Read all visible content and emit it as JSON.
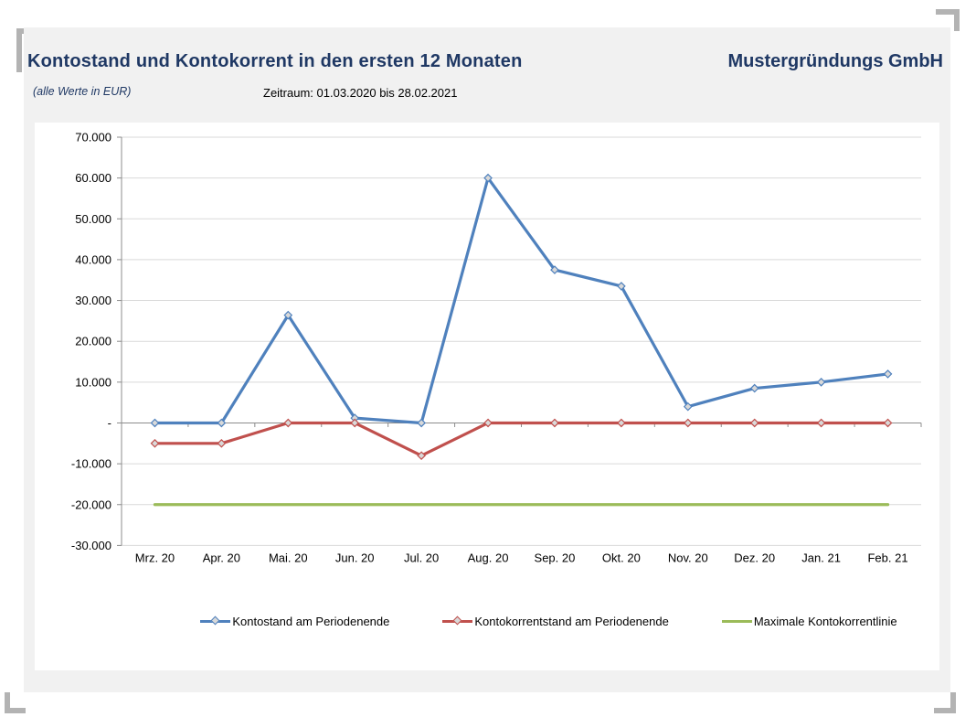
{
  "header": {
    "title": "Kontostand und Kontokorrent in den ersten 12 Monaten",
    "company": "Mustergründungs GmbH",
    "units_note": "(alle Werte in EUR)",
    "period": "Zeitraum: 01.03.2020 bis 28.02.2021"
  },
  "colors": {
    "title_text": "#1f3864",
    "panel_bg": "#f1f1f1",
    "chart_bg": "#ffffff",
    "gridline": "#d9d9d9",
    "axis_line": "#8c8c8c",
    "marker_fill": "#d9d9d9",
    "crop_mark": "#b3b3b3"
  },
  "chart_data": {
    "type": "line",
    "title": "Kontostand und Kontokorrent in den ersten 12 Monaten",
    "xlabel": "",
    "ylabel": "",
    "categories": [
      "Mrz. 20",
      "Apr. 20",
      "Mai. 20",
      "Jun. 20",
      "Jul. 20",
      "Aug. 20",
      "Sep. 20",
      "Okt. 20",
      "Nov. 20",
      "Dez. 20",
      "Jan. 21",
      "Feb. 21"
    ],
    "series": [
      {
        "name": "Kontostand am Periodenende",
        "color": "#4f81bd",
        "marker": "diamond",
        "values": [
          0,
          0,
          26400,
          1200,
          0,
          60000,
          37500,
          33500,
          4000,
          8500,
          10000,
          12000
        ]
      },
      {
        "name": "Kontokorrentstand am Periodenende",
        "color": "#c0504d",
        "marker": "diamond",
        "values": [
          -5000,
          -5000,
          0,
          0,
          -8000,
          0,
          0,
          0,
          0,
          0,
          0,
          0
        ]
      },
      {
        "name": "Maximale Kontokorrentlinie",
        "color": "#9bbb59",
        "marker": "none",
        "values": [
          -20000,
          -20000,
          -20000,
          -20000,
          -20000,
          -20000,
          -20000,
          -20000,
          -20000,
          -20000,
          -20000,
          -20000
        ]
      }
    ],
    "ylim": [
      -30000,
      70000
    ],
    "ytick_step": 10000,
    "ytick_labels": [
      "70.000",
      "60.000",
      "50.000",
      "40.000",
      "30.000",
      "20.000",
      "10.000",
      "-",
      "-10.000",
      "-20.000",
      "-30.000"
    ],
    "grid": true,
    "legend_position": "bottom"
  }
}
